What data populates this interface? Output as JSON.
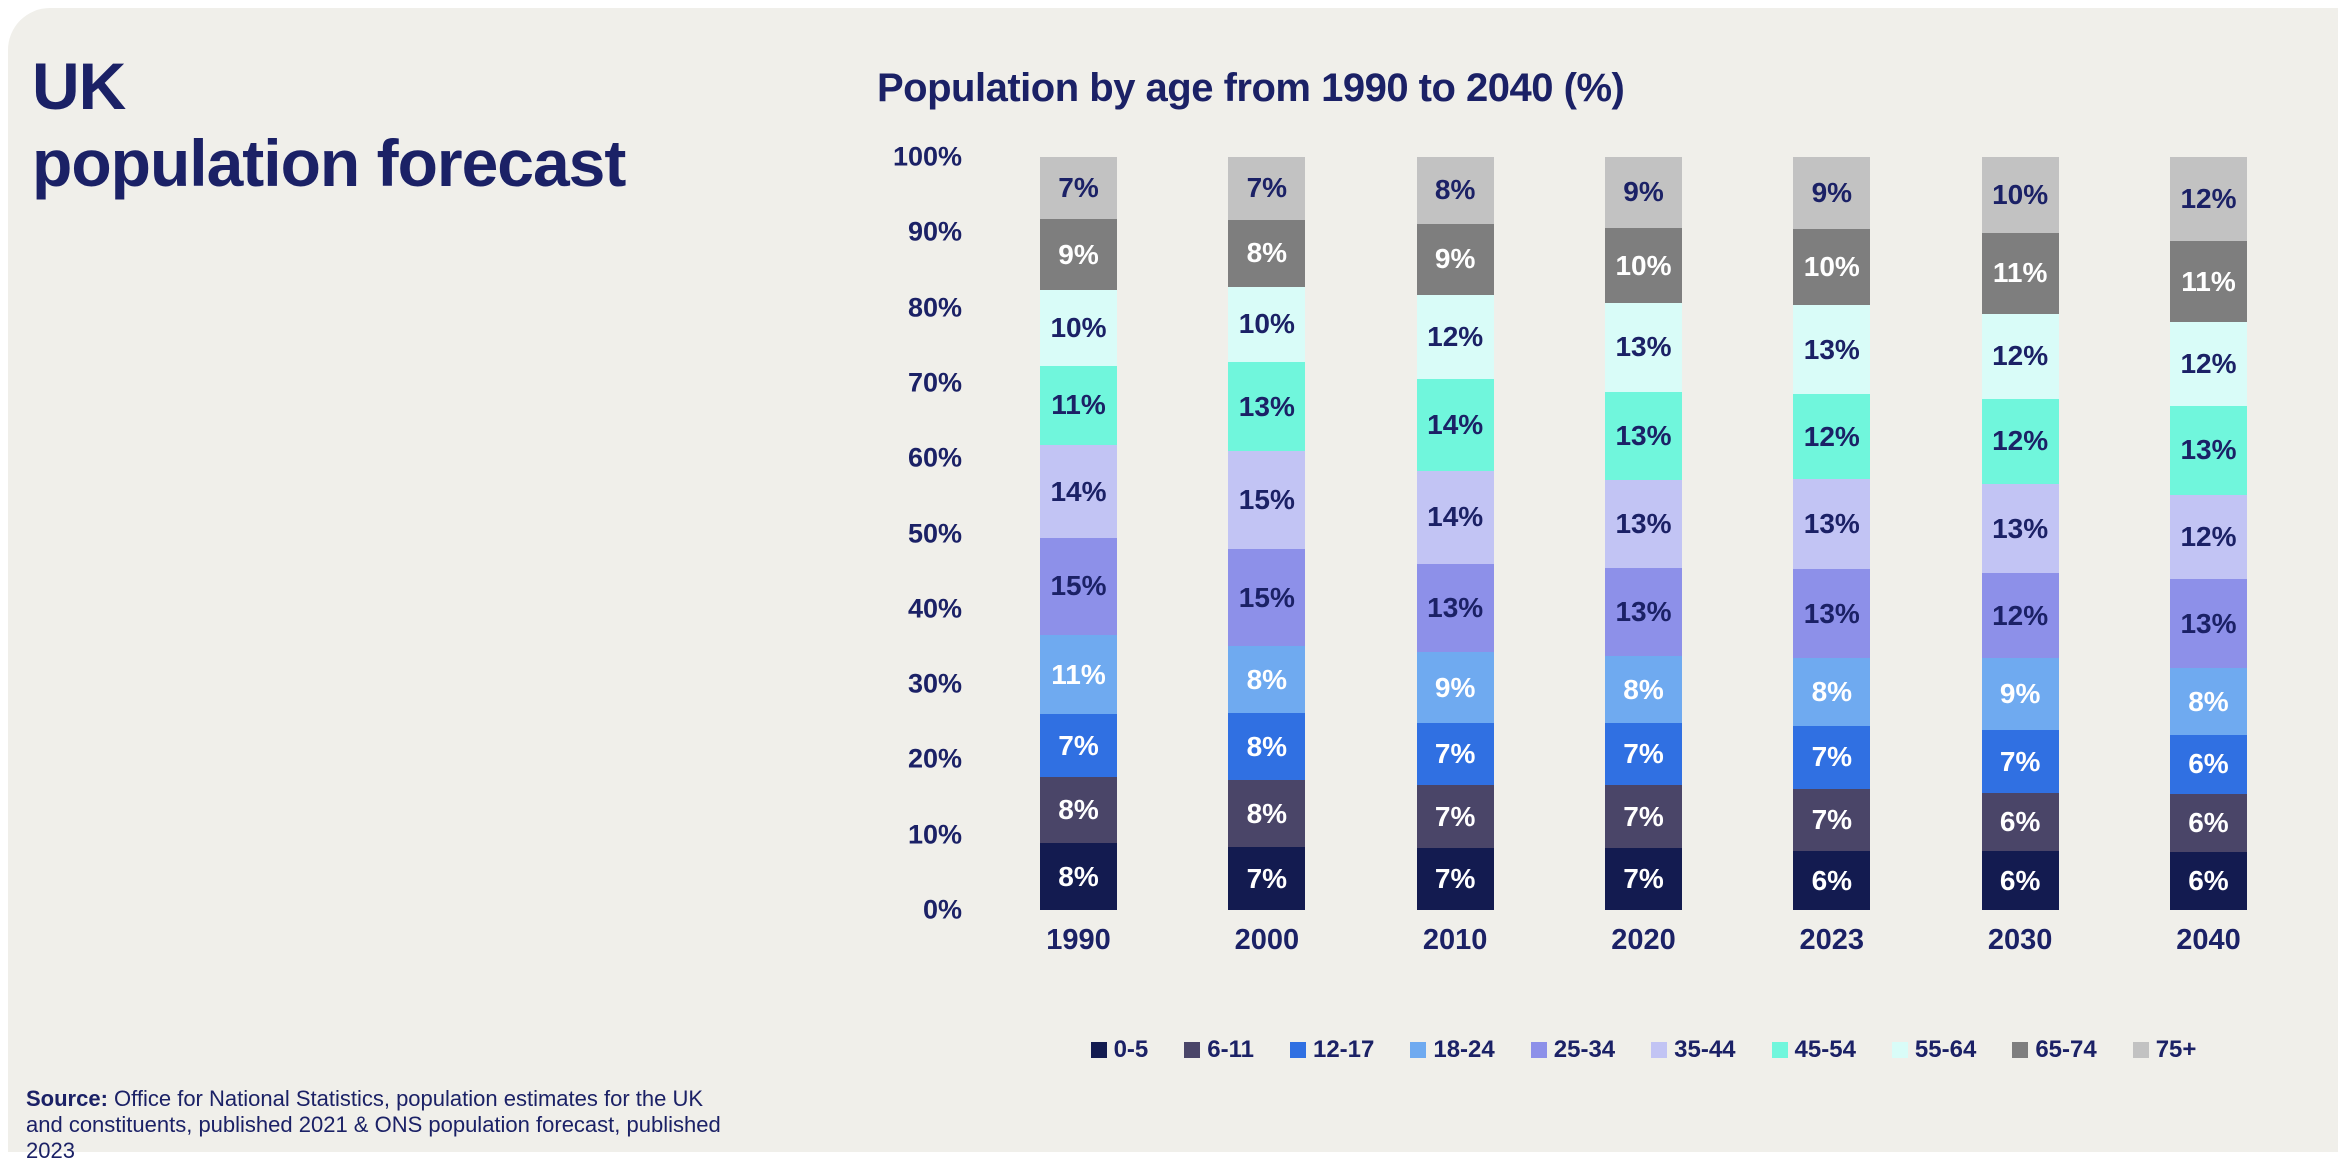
{
  "page": {
    "title_line1": "UK",
    "title_line2": "population forecast"
  },
  "source": {
    "label": "Source:",
    "text": " Office for National Statistics, population estimates for the UK and constituents, published 2021 & ONS population forecast, published 2023"
  },
  "colors": {
    "page_background": "#ffffff",
    "card_background": "#f0efea",
    "text_navy": "#1b2166",
    "label_white": "#ffffff"
  },
  "chart_data": {
    "type": "bar",
    "variant": "stacked-100-percent",
    "title": "Population by age from 1990 to 2040 (%)",
    "categories": [
      "1990",
      "2000",
      "2010",
      "2020",
      "2023",
      "2030",
      "2040"
    ],
    "y_ticks": [
      "100%",
      "90%",
      "80%",
      "70%",
      "60%",
      "50%",
      "40%",
      "30%",
      "20%",
      "10%",
      "0%"
    ],
    "ylim": [
      0,
      100
    ],
    "grid": false,
    "legend_position": "bottom",
    "value_suffix": "%",
    "series": [
      {
        "name": "0-5",
        "color": "#131b50",
        "label_color": "#ffffff",
        "values": [
          8,
          7,
          7,
          7,
          6,
          6,
          6
        ]
      },
      {
        "name": "6-11",
        "color": "#4a4568",
        "label_color": "#ffffff",
        "values": [
          8,
          8,
          7,
          7,
          7,
          6,
          6
        ]
      },
      {
        "name": "12-17",
        "color": "#3070e2",
        "label_color": "#ffffff",
        "values": [
          7,
          8,
          7,
          7,
          7,
          7,
          6
        ]
      },
      {
        "name": "18-24",
        "color": "#6faaf0",
        "label_color": "#ffffff",
        "values": [
          11,
          8,
          9,
          8,
          8,
          9,
          8
        ]
      },
      {
        "name": "25-34",
        "color": "#8d90e9",
        "label_color": "#1b2166",
        "values": [
          15,
          15,
          13,
          13,
          13,
          12,
          13
        ]
      },
      {
        "name": "35-44",
        "color": "#c2c4f4",
        "label_color": "#1b2166",
        "values": [
          14,
          15,
          14,
          13,
          13,
          13,
          12
        ]
      },
      {
        "name": "45-54",
        "color": "#70f6dc",
        "label_color": "#1b2166",
        "values": [
          11,
          13,
          14,
          13,
          12,
          12,
          13
        ]
      },
      {
        "name": "55-64",
        "color": "#d9fcf8",
        "label_color": "#1b2166",
        "values": [
          10,
          10,
          12,
          13,
          13,
          12,
          12
        ]
      },
      {
        "name": "65-74",
        "color": "#7e7e7e",
        "label_color": "#ffffff",
        "values": [
          9,
          8,
          9,
          10,
          10,
          11,
          11
        ]
      },
      {
        "name": "75+",
        "color": "#c2c2c2",
        "label_color": "#1b2166",
        "values": [
          7,
          7,
          8,
          9,
          9,
          10,
          12
        ]
      }
    ]
  }
}
